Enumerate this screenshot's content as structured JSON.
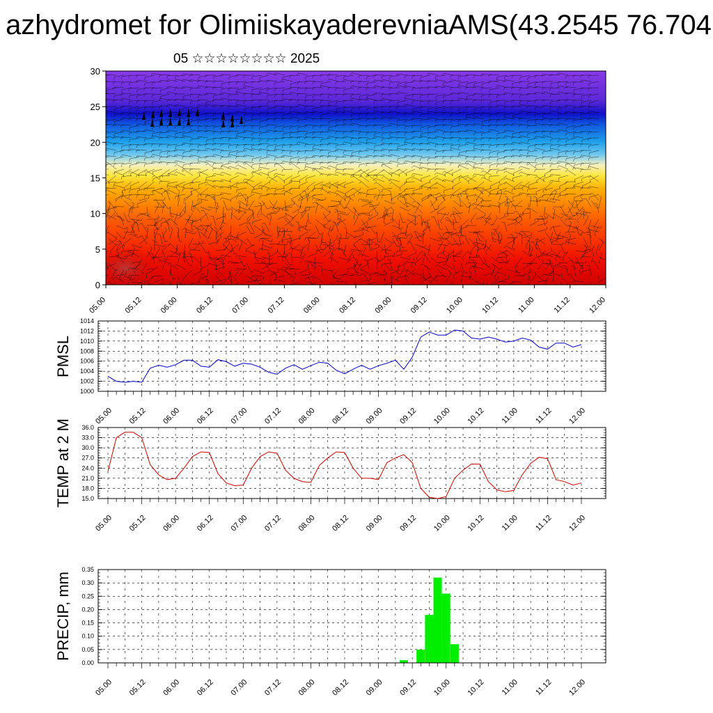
{
  "header": {
    "title": "azhydromet for OlimiiskayaderevniaAMS(43.2545 76.704",
    "subtitle": "05 ☆☆☆☆☆☆☆☆ 2025"
  },
  "colors": {
    "pmsl_line": "#0000cc",
    "temp_line": "#cc0000",
    "precip_bar": "#00ee00",
    "wind_barb": "#000000"
  },
  "chart_data": [
    {
      "type": "heatmap",
      "description_of_field": "vertical cross-section, height levels 0-30 vs time, colour shaded with wind barbs",
      "xlabel": "",
      "ylabel": "",
      "ylim": [
        0,
        30
      ],
      "y_ticks": [
        "0",
        "5",
        "10",
        "15",
        "20",
        "25",
        "30"
      ],
      "x_ticks": [
        "05.00",
        "05.12",
        "06.00",
        "06.12",
        "07.00",
        "07.12",
        "08.00",
        "08.12",
        "09.00",
        "09.12",
        "10.00",
        "10.12",
        "11.00",
        "11.12",
        "12.00"
      ],
      "color_bands_bottom_to_top": [
        "#d00000",
        "#f01000",
        "#ff5a00",
        "#ffb000",
        "#ffe63c",
        "#f5f0c0",
        "#6ec8f0",
        "#1ea0ea",
        "#1058e0",
        "#1010c8",
        "#5a28d8",
        "#8a3ae8"
      ]
    },
    {
      "type": "line",
      "ylabel": "PMSL",
      "ylim": [
        1000,
        1014
      ],
      "y_ticks": [
        "1000",
        "1002",
        "1004",
        "1006",
        "1008",
        "1010",
        "1012",
        "1014"
      ],
      "x_ticks": [
        "05.00",
        "05.12",
        "06.00",
        "06.12",
        "07.00",
        "07.12",
        "08.00",
        "08.12",
        "09.00",
        "09.12",
        "10.00",
        "10.12",
        "11.00",
        "11.12",
        "12.00"
      ],
      "series": [
        {
          "values": [
            1003.0,
            1002.0,
            1001.8,
            1002.0,
            1001.8,
            1004.6,
            1005.2,
            1004.8,
            1005.3,
            1006.2,
            1006.2,
            1005.0,
            1004.8,
            1006.3,
            1005.9,
            1005.0,
            1005.6,
            1005.4,
            1004.8,
            1003.8,
            1003.4,
            1004.6,
            1005.3,
            1004.4,
            1005.1,
            1005.8,
            1005.6,
            1004.2,
            1003.5,
            1004.4,
            1005.2,
            1004.4,
            1005.1,
            1005.6,
            1006.2,
            1004.4,
            1006.8,
            1010.8,
            1011.8,
            1011.2,
            1011.2,
            1012.2,
            1012.0,
            1010.6,
            1010.4,
            1010.8,
            1010.4,
            1009.8,
            1010.0,
            1010.6,
            1010.2,
            1008.8,
            1008.4,
            1009.6,
            1009.6,
            1008.8,
            1009.3
          ]
        }
      ]
    },
    {
      "type": "line",
      "ylabel": "TEMP at 2 M",
      "ylim": [
        15,
        36
      ],
      "y_ticks": [
        "15.0",
        "18.0",
        "21.0",
        "24.0",
        "27.0",
        "30.0",
        "33.0",
        "36.0"
      ],
      "x_ticks": [
        "05.00",
        "05.12",
        "06.00",
        "06.12",
        "07.00",
        "07.12",
        "08.00",
        "08.12",
        "09.00",
        "09.12",
        "10.00",
        "10.12",
        "11.00",
        "11.12",
        "12.00"
      ],
      "series": [
        {
          "values": [
            23.0,
            33.0,
            34.6,
            34.6,
            33.0,
            25.0,
            22.0,
            20.6,
            21.0,
            24.0,
            27.4,
            28.8,
            28.6,
            22.4,
            19.6,
            18.8,
            19.0,
            24.0,
            27.4,
            28.8,
            28.4,
            23.4,
            21.0,
            20.0,
            19.8,
            24.8,
            27.0,
            28.8,
            28.6,
            24.0,
            21.0,
            21.0,
            20.6,
            25.6,
            27.0,
            28.0,
            25.6,
            18.0,
            15.4,
            15.0,
            15.6,
            21.0,
            23.4,
            25.2,
            25.2,
            20.0,
            17.6,
            17.0,
            17.4,
            22.0,
            25.4,
            27.2,
            26.8,
            20.6,
            20.0,
            19.0,
            19.6
          ]
        }
      ]
    },
    {
      "type": "bar",
      "ylabel": "PRECIP, mm",
      "ylim": [
        0,
        0.35
      ],
      "y_ticks": [
        "0.00",
        "0.05",
        "0.10",
        "0.15",
        "0.20",
        "0.25",
        "0.30",
        "0.35"
      ],
      "x_ticks": [
        "05.00",
        "05.12",
        "06.00",
        "06.12",
        "07.00",
        "07.12",
        "08.00",
        "08.12",
        "09.00",
        "09.12",
        "10.00",
        "10.12",
        "11.00",
        "11.12",
        "12.00"
      ],
      "bars": [
        {
          "index": 35,
          "value": 0.01
        },
        {
          "index": 37,
          "value": 0.05
        },
        {
          "index": 38,
          "value": 0.18
        },
        {
          "index": 39,
          "value": 0.32
        },
        {
          "index": 40,
          "value": 0.26
        },
        {
          "index": 41,
          "value": 0.07
        }
      ]
    }
  ]
}
